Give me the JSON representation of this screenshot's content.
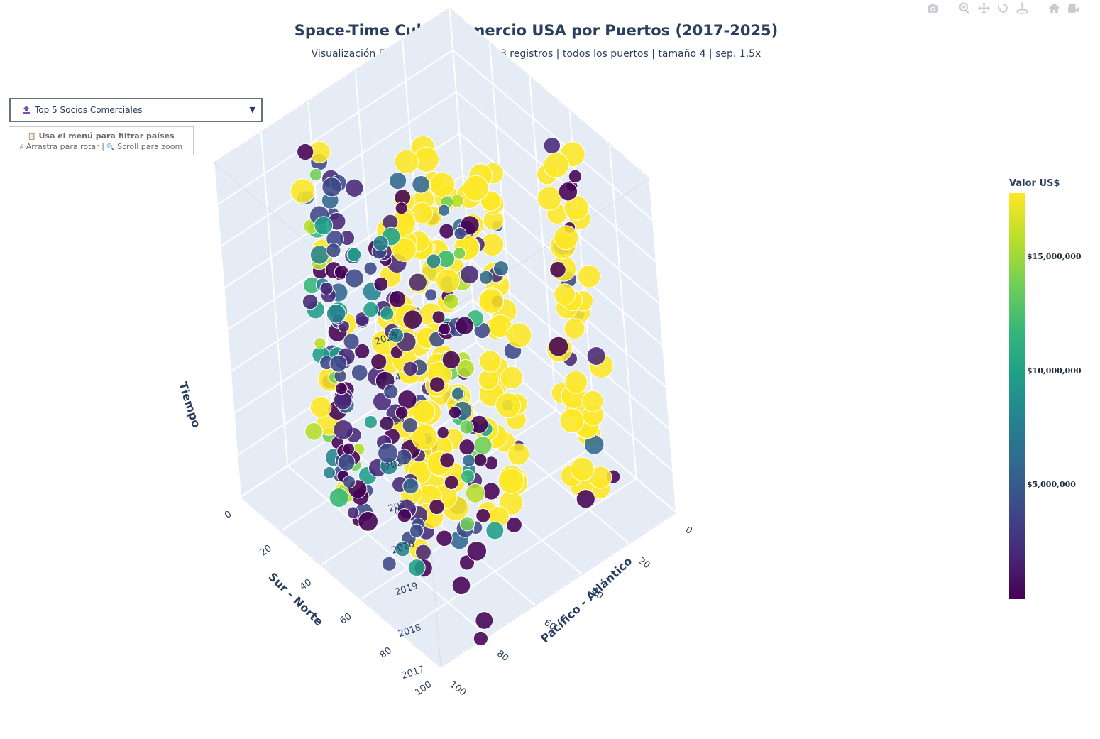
{
  "header": {
    "title": "Space-Time Cube: Comercio USA por Puertos (2017-2025)",
    "subtitle": "Visualización Espaciotemporal - 10,883 registros | todos los puertos | tamaño 4 | sep. 1.5x"
  },
  "toolbar": {
    "icons": [
      "camera-icon",
      "zoom-icon",
      "pan-icon",
      "orbit-rotation-icon",
      "turntable-rotation-icon",
      "reset-camera-icon",
      "default-view-icon"
    ]
  },
  "controls": {
    "dropdown_label": "Top 5 Socios Comerciales",
    "hint_line1": "Usa el menú para filtrar países",
    "hint_rotate": "Arrastra para rotar",
    "hint_sep": "|",
    "hint_zoom": "Scroll para zoom"
  },
  "colorbar": {
    "title": "Valor US$",
    "colorscale": [
      "#440154",
      "#482878",
      "#3e4989",
      "#31688e",
      "#26828e",
      "#1f9e89",
      "#35b779",
      "#6ece58",
      "#b5de2b",
      "#fde725"
    ],
    "range": [
      0,
      17800000
    ],
    "ticks": [
      {
        "value": 5000000,
        "label": "$5,000,000"
      },
      {
        "value": 10000000,
        "label": "$10,000,000"
      },
      {
        "value": 15000000,
        "label": "$15,000,000"
      }
    ]
  },
  "chart_data": {
    "type": "scatter3d",
    "axes": {
      "x": {
        "title": "Pacífico - Atlántico",
        "range": [
          0,
          100
        ],
        "ticks": [
          "0",
          "20",
          "40",
          "60",
          "80",
          "100"
        ]
      },
      "y": {
        "title": "Sur - Norte",
        "range": [
          0,
          100
        ],
        "ticks": [
          "0",
          "20",
          "40",
          "60",
          "80",
          "100"
        ]
      },
      "z": {
        "title": "Tiempo",
        "range": [
          2017,
          2025
        ],
        "ticks": [
          "2017",
          "2018",
          "2019",
          "2020",
          "2021",
          "2022",
          "2023",
          "2024",
          "2025"
        ]
      }
    },
    "clusters": [
      {
        "x": 20,
        "y": 40,
        "value_level": "mostly low"
      },
      {
        "x": 20,
        "y": 65,
        "value_level": "mostly low"
      },
      {
        "x": 25,
        "y": 80,
        "value_level": "mixed"
      },
      {
        "x": 35,
        "y": 50,
        "value_level": "high"
      },
      {
        "x": 50,
        "y": 55,
        "value_level": "high"
      },
      {
        "x": 45,
        "y": 35,
        "value_level": "mixed"
      },
      {
        "x": 60,
        "y": 35,
        "value_level": "high"
      },
      {
        "x": 85,
        "y": 25,
        "value_level": "high"
      },
      {
        "x": 15,
        "y": 5,
        "value_level": "low"
      }
    ],
    "note_points_shown": "approximate sample of the 10,883 records"
  }
}
